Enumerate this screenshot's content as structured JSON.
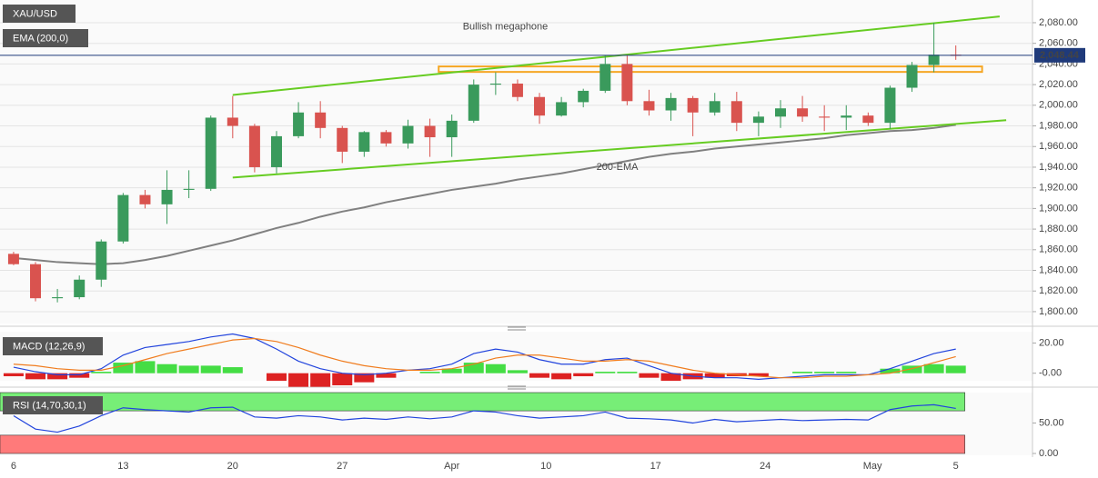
{
  "chart_data": [
    {
      "type": "candlestick",
      "title": "XAU/USD",
      "x": [
        0,
        1,
        2,
        3,
        4,
        5,
        6,
        7,
        8,
        9,
        10,
        11,
        12,
        13,
        14,
        15,
        16,
        17,
        18,
        19,
        20,
        21,
        22,
        23,
        24,
        25,
        26,
        27,
        28,
        29,
        30,
        31,
        32,
        33,
        34,
        35,
        36,
        37,
        38,
        39,
        40,
        41,
        42,
        43
      ],
      "open": [
        1856,
        1846,
        1813,
        1814,
        1831,
        1868,
        1913,
        1904,
        1918,
        1919,
        1988,
        1980,
        1940,
        1970,
        1993,
        1978,
        1955,
        1974,
        1963,
        1980,
        1969,
        1985,
        2020,
        2021,
        2008,
        1990,
        2003,
        2014,
        2040,
        2004,
        1995,
        2007,
        1993,
        2004,
        1983,
        1989,
        1997,
        1989,
        1988,
        1990,
        1983,
        2017,
        2039,
        2049
      ],
      "high": [
        1858,
        1848,
        1822,
        1835,
        1870,
        1915,
        1918,
        1937,
        1937,
        1990,
        2009,
        1982,
        1975,
        2003,
        2004,
        1980,
        1975,
        1976,
        1986,
        1987,
        1991,
        2025,
        2032,
        2025,
        2012,
        2008,
        2016,
        2048,
        2048,
        2015,
        2012,
        2009,
        2012,
        2013,
        1994,
        2005,
        2009,
        2000,
        2000,
        1993,
        2019,
        2042,
        2080,
        2058
      ],
      "low": [
        1845,
        1810,
        1809,
        1812,
        1824,
        1866,
        1900,
        1885,
        1910,
        1917,
        1968,
        1935,
        1934,
        1968,
        1968,
        1944,
        1950,
        1960,
        1958,
        1950,
        1950,
        1983,
        2010,
        2004,
        1982,
        1989,
        1998,
        2012,
        2000,
        1990,
        1985,
        1970,
        1990,
        1975,
        1970,
        1978,
        1984,
        1975,
        1976,
        1980,
        1977,
        2013,
        2032,
        2044
      ],
      "close": [
        1846,
        1813,
        1814,
        1831,
        1868,
        1913,
        1904,
        1918,
        1919,
        1988,
        1980,
        1940,
        1970,
        1993,
        1978,
        1955,
        1974,
        1963,
        1980,
        1969,
        1985,
        2020,
        2021,
        2008,
        1990,
        2003,
        2014,
        2040,
        2004,
        1995,
        2007,
        1993,
        2004,
        1983,
        1989,
        1997,
        1989,
        1988,
        1990,
        1983,
        2017,
        2039,
        2049,
        2048
      ],
      "up_color": "#3a9a5c",
      "down_color": "#d9534f",
      "ema": {
        "name": "EMA (200,0)",
        "color": "#808080",
        "values": [
          1852,
          1850,
          1848,
          1847,
          1846,
          1847,
          1850,
          1854,
          1859,
          1864,
          1869,
          1875,
          1881,
          1886,
          1892,
          1897,
          1901,
          1906,
          1910,
          1914,
          1918,
          1921,
          1924,
          1928,
          1931,
          1934,
          1938,
          1942,
          1946,
          1950,
          1953,
          1955,
          1958,
          1960,
          1962,
          1964,
          1966,
          1968,
          1971,
          1973,
          1975,
          1976,
          1978,
          1981
        ]
      },
      "trendlines": [
        {
          "x": [
            10,
            45
          ],
          "y": [
            2010,
            2086
          ],
          "color": "#66cc22"
        },
        {
          "x": [
            10,
            45.3
          ],
          "y": [
            1930,
            1985.5
          ],
          "color": "#66cc22"
        }
      ],
      "zone": {
        "x": [
          19.4,
          44.2
        ],
        "y": [
          2032.3,
          2037.6
        ],
        "color": "#f5a623"
      },
      "annotations": [
        {
          "text": "Bullish megaphone",
          "x": 20.5,
          "y": 2076,
          "color": "#66cc22"
        },
        {
          "text": "200-EMA",
          "x": 26.6,
          "y": 1940,
          "color": "#808080"
        }
      ],
      "last_price": {
        "value": 2048.44,
        "label": "2,048.44",
        "color": "#1f3a7a"
      },
      "xlim": [
        -0.62,
        46.5
      ],
      "ylim": [
        1788.5,
        2102
      ],
      "xticks": [
        {
          "value": 0,
          "label": "6"
        },
        {
          "value": 5,
          "label": "13"
        },
        {
          "value": 10,
          "label": "20"
        },
        {
          "value": 15,
          "label": "27"
        },
        {
          "value": 20,
          "label": "Apr"
        },
        {
          "value": 24.3,
          "label": "10"
        },
        {
          "value": 29.3,
          "label": "17"
        },
        {
          "value": 34.3,
          "label": "24"
        },
        {
          "value": 39.2,
          "label": "May"
        },
        {
          "value": 43,
          "label": "5"
        }
      ],
      "yticks": [
        {
          "value": 1800,
          "label": "1,800.00"
        },
        {
          "value": 1820,
          "label": "1,820.00"
        },
        {
          "value": 1840,
          "label": "1,840.00"
        },
        {
          "value": 1860,
          "label": "1,860.00"
        },
        {
          "value": 1880,
          "label": "1,880.00"
        },
        {
          "value": 1900,
          "label": "1,900.00"
        },
        {
          "value": 1920,
          "label": "1,920.00"
        },
        {
          "value": 1940,
          "label": "1,940.00"
        },
        {
          "value": 1960,
          "label": "1,960.00"
        },
        {
          "value": 1980,
          "label": "1,980.00"
        },
        {
          "value": 2000,
          "label": "2,000.00"
        },
        {
          "value": 2020,
          "label": "2,020.00"
        },
        {
          "value": 2040,
          "label": "2,040.00"
        },
        {
          "value": 2060,
          "label": "2,060.00"
        },
        {
          "value": 2080,
          "label": "2,080.00"
        }
      ],
      "grid": true
    },
    {
      "type": "macd",
      "title": "MACD (12,26,9)",
      "ylim": [
        -5,
        27.5
      ],
      "yticks": [
        {
          "value": 20,
          "label": "20.00"
        },
        {
          "value": 0,
          "label": "-0.00"
        }
      ],
      "series": [
        {
          "color": "#2244dd",
          "values": [
            4,
            1,
            -1,
            -1,
            3,
            12,
            17,
            19,
            21,
            24,
            26,
            23,
            16,
            8,
            3,
            0,
            -1,
            0,
            2,
            3,
            6,
            13,
            16,
            14,
            9,
            6,
            6,
            9,
            10,
            5,
            0,
            -2,
            -3,
            -3,
            -4,
            -3,
            -2,
            -1,
            -1,
            -1,
            3,
            8,
            13,
            16
          ]
        },
        {
          "color": "#f07c1e",
          "values": [
            6,
            5,
            3,
            2,
            2,
            5,
            9,
            13,
            16,
            19,
            22,
            23,
            21,
            17,
            12,
            8,
            5,
            3,
            2,
            2,
            3,
            6,
            10,
            12,
            12,
            10,
            8,
            8,
            9,
            8,
            5,
            2,
            0,
            -1,
            -2,
            -3,
            -3,
            -2,
            -2,
            -1,
            0,
            3,
            7,
            11
          ]
        }
      ],
      "histogram": {
        "up_color": "#44dd44",
        "down_color": "#dd2222",
        "values": [
          -2,
          -4,
          -4,
          -3,
          1,
          7,
          8,
          6,
          5,
          5,
          4,
          0,
          -5,
          -9,
          -9,
          -8,
          -6,
          -3,
          0,
          1,
          3,
          7,
          6,
          2,
          -3,
          -4,
          -2,
          1,
          1,
          -3,
          -5,
          -4,
          -3,
          -2,
          -2,
          0,
          1,
          1,
          1,
          0,
          3,
          5,
          6,
          5
        ]
      }
    },
    {
      "type": "rsi",
      "title": "RSI (14,70,30,1)",
      "ylim": [
        -3,
        100
      ],
      "yticks": [
        {
          "value": 50,
          "label": "50.00"
        },
        {
          "value": 0,
          "label": "0.00"
        }
      ],
      "zones": [
        {
          "y": [
            70,
            100
          ],
          "color": "#77ee77"
        },
        {
          "y": [
            0,
            30
          ],
          "color": "#ff7a7a"
        }
      ],
      "series": [
        {
          "color": "#2244dd",
          "values": [
            62,
            40,
            35,
            45,
            62,
            75,
            72,
            70,
            68,
            75,
            76,
            60,
            58,
            62,
            60,
            55,
            58,
            56,
            60,
            57,
            60,
            70,
            68,
            62,
            58,
            60,
            62,
            68,
            58,
            57,
            55,
            50,
            56,
            52,
            54,
            56,
            54,
            55,
            56,
            55,
            72,
            78,
            80,
            74
          ]
        }
      ]
    }
  ]
}
